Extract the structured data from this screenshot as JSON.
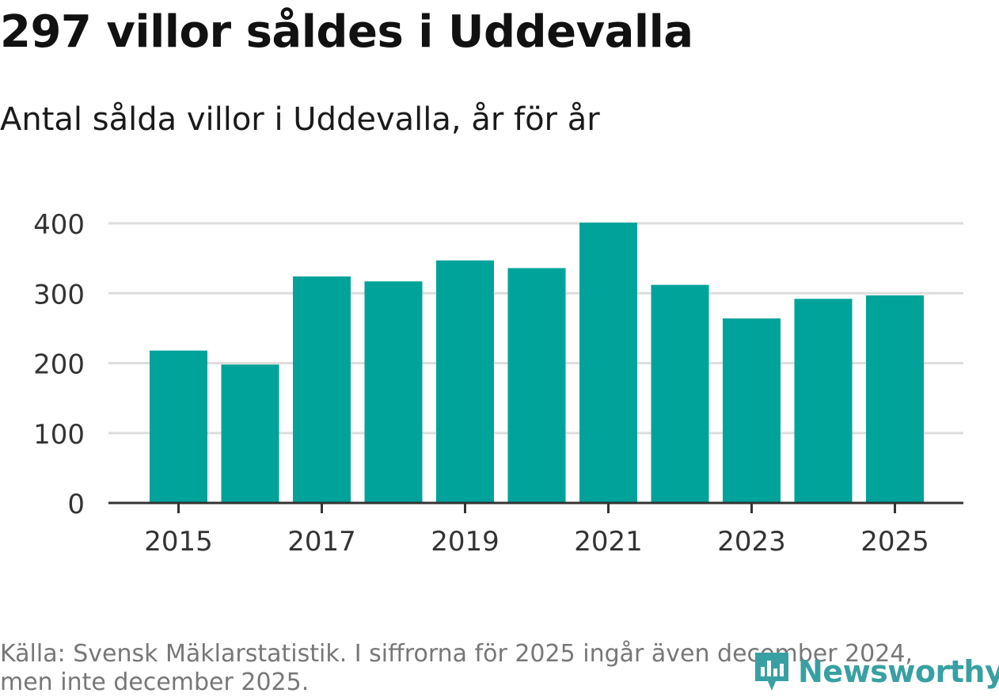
{
  "header": {
    "title": "297 villor såldes i Uddevalla",
    "subtitle": "Antal sålda villor i Uddevalla, år för år"
  },
  "footer": {
    "source_line1": "Källa: Svensk Mäklarstatistik. I siffrorna för 2025 ingår även december 2024,",
    "source_line2": "men inte december 2025."
  },
  "logo": {
    "text": "Newsworthy",
    "icon": "bar-chart-pin-icon"
  },
  "colors": {
    "bar": "#00a39a",
    "grid": "#dddddd",
    "axis": "#333333",
    "logo": "#38a0a2"
  },
  "chart_data": {
    "type": "bar",
    "title": "297 villor såldes i Uddevalla",
    "subtitle": "Antal sålda villor i Uddevalla, år för år",
    "categories": [
      "2015",
      "2016",
      "2017",
      "2018",
      "2019",
      "2020",
      "2021",
      "2022",
      "2023",
      "2024",
      "2025"
    ],
    "values": [
      218,
      198,
      324,
      317,
      347,
      336,
      401,
      312,
      264,
      292,
      297
    ],
    "x_tick_labels": [
      "2015",
      "2017",
      "2019",
      "2021",
      "2023",
      "2025"
    ],
    "y_ticks": [
      0,
      100,
      200,
      300,
      400
    ],
    "ylim": [
      0,
      400
    ],
    "xlabel": "",
    "ylabel": "",
    "grid": true
  }
}
